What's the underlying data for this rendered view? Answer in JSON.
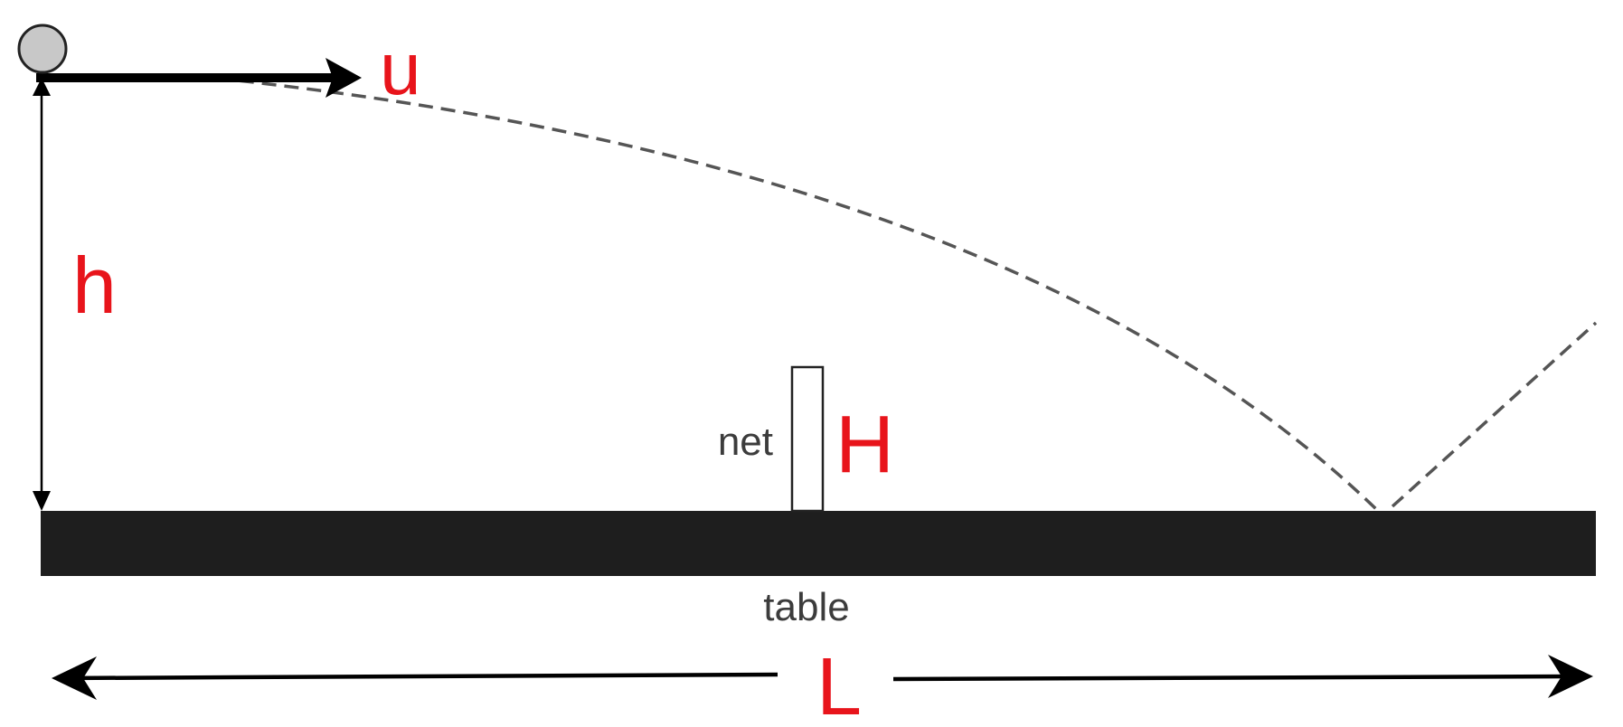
{
  "labels": {
    "velocity": "u",
    "height": "h",
    "net_height": "H",
    "net": "net",
    "table": "table",
    "length": "L"
  },
  "colors": {
    "label_red": "#e8141b",
    "ink": "#000000",
    "table_fill": "#1e1e1e",
    "ball_fill": "#c8c8c8",
    "trajectory": "#555555"
  }
}
